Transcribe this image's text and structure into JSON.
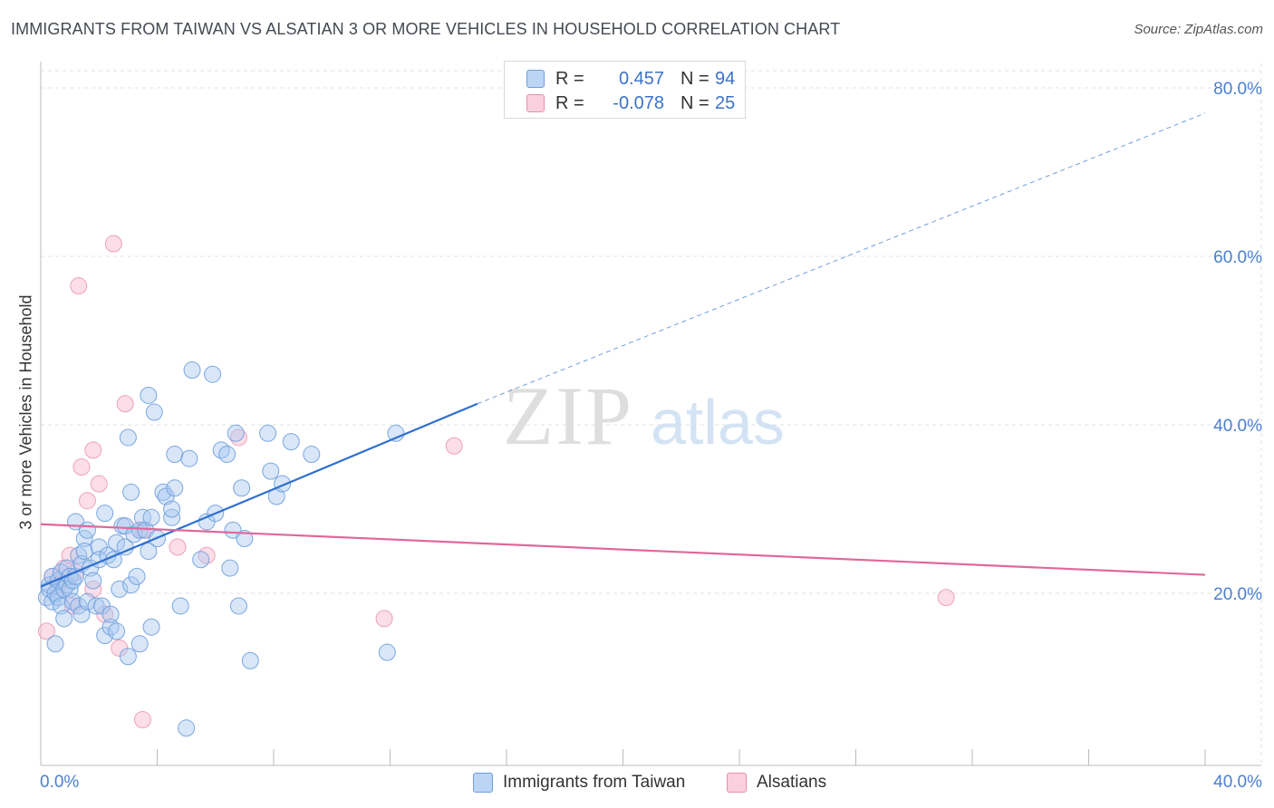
{
  "header": {
    "title": "IMMIGRANTS FROM TAIWAN VS ALSATIAN 3 OR MORE VEHICLES IN HOUSEHOLD CORRELATION CHART",
    "source": "Source: ZipAtlas.com"
  },
  "watermark": {
    "zip": "ZIP",
    "atlas": "atlas"
  },
  "legend_top": {
    "rows": [
      {
        "r_label": "R =",
        "r_value": "0.457",
        "n_label": "N =",
        "n_value": "94"
      },
      {
        "r_label": "R =",
        "r_value": "-0.078",
        "n_label": "N =",
        "n_value": "25"
      }
    ]
  },
  "legend_bottom": {
    "series1": "Immigrants from Taiwan",
    "series2": "Alsatians"
  },
  "colors": {
    "blue_fill": "#a9c8f0",
    "blue_stroke": "#6e9edc",
    "blue_line": "#2f6fcf",
    "pink_fill": "#f7bdd0",
    "pink_stroke": "#e98fae",
    "pink_line": "#e0689a",
    "axis_text": "#4a7fcf",
    "grid": "#e2e2e2"
  },
  "chart_data": {
    "type": "scatter",
    "title": "IMMIGRANTS FROM TAIWAN VS ALSATIAN 3 OR MORE VEHICLES IN HOUSEHOLD CORRELATION CHART",
    "xlabel": "",
    "ylabel": "3 or more Vehicles in Household",
    "xlim": [
      0,
      40
    ],
    "ylim": [
      0,
      80
    ],
    "x_tick_labels": [
      "0.0%",
      "40.0%"
    ],
    "y_ticks": [
      20,
      40,
      60,
      80
    ],
    "y_tick_labels": [
      "20.0%",
      "40.0%",
      "60.0%",
      "80.0%"
    ],
    "grid": true,
    "series": [
      {
        "name": "Immigrants from Taiwan",
        "r": 0.457,
        "n": 94,
        "trend": {
          "x0": 0,
          "y0": 20.8,
          "x1": 15.0,
          "y1": 42.5,
          "dash_to_x": 40.0,
          "dash_to_y": 77.0
        },
        "points": [
          [
            0.2,
            19.5
          ],
          [
            0.3,
            20.5
          ],
          [
            0.3,
            21.0
          ],
          [
            0.4,
            19.0
          ],
          [
            0.4,
            22.0
          ],
          [
            0.5,
            20.0
          ],
          [
            0.5,
            14.0
          ],
          [
            0.6,
            21.5
          ],
          [
            0.6,
            19.5
          ],
          [
            0.7,
            22.5
          ],
          [
            0.7,
            18.5
          ],
          [
            0.8,
            20.5
          ],
          [
            0.8,
            17.0
          ],
          [
            0.9,
            21.0
          ],
          [
            0.9,
            23.0
          ],
          [
            1.0,
            22.0
          ],
          [
            1.0,
            20.5
          ],
          [
            1.1,
            21.5
          ],
          [
            1.1,
            19.0
          ],
          [
            1.2,
            22.0
          ],
          [
            1.2,
            28.5
          ],
          [
            1.3,
            24.5
          ],
          [
            1.3,
            18.5
          ],
          [
            1.4,
            23.5
          ],
          [
            1.4,
            17.5
          ],
          [
            1.5,
            26.5
          ],
          [
            1.5,
            25.0
          ],
          [
            1.6,
            27.5
          ],
          [
            1.6,
            19.0
          ],
          [
            1.7,
            23.0
          ],
          [
            1.8,
            21.5
          ],
          [
            1.9,
            18.5
          ],
          [
            2.0,
            25.5
          ],
          [
            2.0,
            24.0
          ],
          [
            2.1,
            18.5
          ],
          [
            2.2,
            15.0
          ],
          [
            2.2,
            29.5
          ],
          [
            2.3,
            24.5
          ],
          [
            2.4,
            16.0
          ],
          [
            2.4,
            17.5
          ],
          [
            2.5,
            24.0
          ],
          [
            2.6,
            26.0
          ],
          [
            2.6,
            15.5
          ],
          [
            2.7,
            20.5
          ],
          [
            2.8,
            28.0
          ],
          [
            2.9,
            25.5
          ],
          [
            2.9,
            28.0
          ],
          [
            3.0,
            12.5
          ],
          [
            3.0,
            38.5
          ],
          [
            3.1,
            32.0
          ],
          [
            3.1,
            21.0
          ],
          [
            3.2,
            27.0
          ],
          [
            3.3,
            22.0
          ],
          [
            3.4,
            14.0
          ],
          [
            3.4,
            27.5
          ],
          [
            3.5,
            29.0
          ],
          [
            3.6,
            27.5
          ],
          [
            3.7,
            43.5
          ],
          [
            3.7,
            25.0
          ],
          [
            3.8,
            16.0
          ],
          [
            3.8,
            29.0
          ],
          [
            3.9,
            41.5
          ],
          [
            4.0,
            26.5
          ],
          [
            4.2,
            32.0
          ],
          [
            4.3,
            31.5
          ],
          [
            4.5,
            29.0
          ],
          [
            4.5,
            30.0
          ],
          [
            4.6,
            32.5
          ],
          [
            4.6,
            36.5
          ],
          [
            4.8,
            18.5
          ],
          [
            5.0,
            4.0
          ],
          [
            5.1,
            36.0
          ],
          [
            5.2,
            46.5
          ],
          [
            5.5,
            24.0
          ],
          [
            5.7,
            28.5
          ],
          [
            5.9,
            46.0
          ],
          [
            6.0,
            29.5
          ],
          [
            6.2,
            37.0
          ],
          [
            6.4,
            36.5
          ],
          [
            6.5,
            23.0
          ],
          [
            6.6,
            27.5
          ],
          [
            6.7,
            39.0
          ],
          [
            6.8,
            18.5
          ],
          [
            6.9,
            32.5
          ],
          [
            7.0,
            26.5
          ],
          [
            7.2,
            12.0
          ],
          [
            7.8,
            39.0
          ],
          [
            7.9,
            34.5
          ],
          [
            8.1,
            31.5
          ],
          [
            8.3,
            33.0
          ],
          [
            8.6,
            38.0
          ],
          [
            9.3,
            36.5
          ],
          [
            12.2,
            39.0
          ],
          [
            11.9,
            13.0
          ]
        ]
      },
      {
        "name": "Alsatians",
        "r": -0.078,
        "n": 25,
        "trend": {
          "x0": 0,
          "y0": 28.2,
          "x1": 40.0,
          "y1": 22.2
        },
        "points": [
          [
            0.2,
            15.5
          ],
          [
            0.4,
            22.0
          ],
          [
            0.6,
            21.0
          ],
          [
            0.8,
            23.0
          ],
          [
            1.0,
            24.5
          ],
          [
            1.1,
            18.5
          ],
          [
            1.2,
            22.5
          ],
          [
            1.3,
            56.5
          ],
          [
            1.4,
            35.0
          ],
          [
            1.6,
            31.0
          ],
          [
            1.8,
            37.0
          ],
          [
            1.8,
            20.5
          ],
          [
            2.0,
            33.0
          ],
          [
            2.2,
            17.5
          ],
          [
            2.5,
            61.5
          ],
          [
            2.7,
            13.5
          ],
          [
            2.9,
            42.5
          ],
          [
            3.5,
            27.5
          ],
          [
            4.7,
            25.5
          ],
          [
            5.7,
            24.5
          ],
          [
            6.8,
            38.5
          ],
          [
            11.8,
            17.0
          ],
          [
            14.2,
            37.5
          ],
          [
            31.1,
            19.5
          ],
          [
            3.5,
            5.0
          ]
        ]
      }
    ]
  },
  "y_axis_label": "3 or more Vehicles in Household"
}
